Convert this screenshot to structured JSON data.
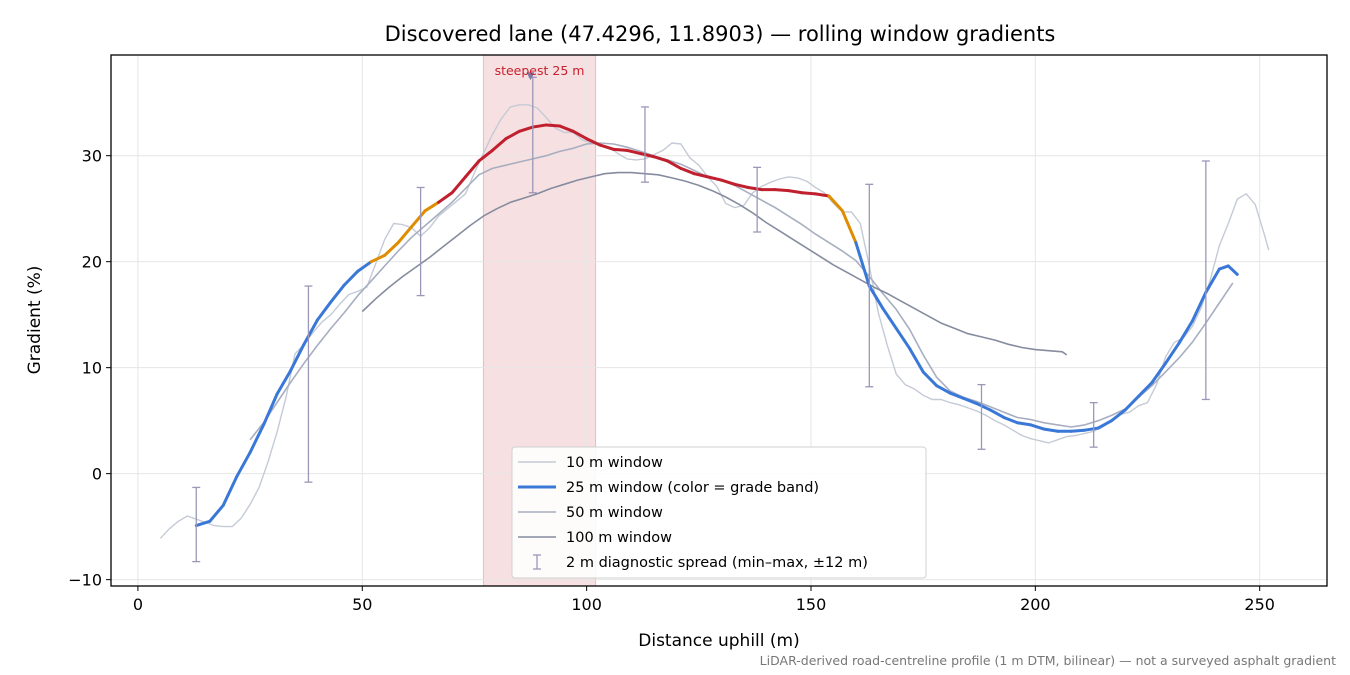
{
  "chart_data": {
    "type": "line",
    "title": "Discovered lane (47.4296, 11.8903) — rolling window gradients",
    "xlabel": "Distance uphill (m)",
    "ylabel": "Gradient (%)",
    "xlim": [
      -6,
      265
    ],
    "ylim": [
      -10.6,
      39.5
    ],
    "x_ticks": [
      0,
      50,
      100,
      150,
      200,
      250
    ],
    "y_ticks": [
      -10,
      0,
      10,
      20,
      30
    ],
    "x_tick_labels": [
      "0",
      "50",
      "100",
      "150",
      "200",
      "250"
    ],
    "y_tick_labels": [
      "−10",
      "0",
      "10",
      "20",
      "30"
    ],
    "grid": true,
    "legend_placement": "lower-center",
    "footnote": "LiDAR-derived road-centreline profile (1 m DTM, bilinear) — not a surveyed asphalt gradient",
    "highlight": {
      "x_start": 77,
      "x_end": 102,
      "label": "steepest 25 m",
      "marker_x": 87.5,
      "marker_y": 37.5,
      "color": "#c8202e"
    },
    "grade_band_colors": {
      "low": "#3a78d8",
      "mid": "#e08c00",
      "high": "#c0202e"
    },
    "grade_band_thresholds": [
      20,
      26
    ],
    "series": [
      {
        "name": "10 m window",
        "color": "#c4cad6",
        "x": [
          5,
          7,
          9,
          11,
          13,
          15,
          17,
          19,
          21,
          23,
          25,
          27,
          29,
          31,
          33,
          35,
          37,
          39,
          41,
          43,
          45,
          47,
          49,
          51,
          53,
          55,
          57,
          59,
          61,
          63,
          65,
          67,
          69,
          71,
          73,
          75,
          77,
          79,
          81,
          83,
          85,
          87,
          89,
          91,
          93,
          95,
          97,
          99,
          101,
          103,
          105,
          107,
          109,
          111,
          113,
          115,
          117,
          119,
          121,
          123,
          125,
          127,
          129,
          131,
          133,
          135,
          137,
          139,
          141,
          143,
          145,
          147,
          149,
          151,
          153,
          155,
          157,
          159,
          161,
          163,
          165,
          167,
          169,
          171,
          173,
          175,
          177,
          179,
          181,
          183,
          185,
          187,
          189,
          191,
          193,
          195,
          197,
          199,
          201,
          203,
          205,
          207,
          209,
          211,
          213,
          215,
          217,
          219,
          221,
          223,
          225,
          227,
          229,
          231,
          233,
          235,
          237,
          239,
          241,
          243,
          245,
          247,
          249,
          251,
          252
        ],
        "y": [
          -6.1,
          -5.2,
          -4.5,
          -4.0,
          -4.3,
          -4.6,
          -4.9,
          -5.0,
          -5.0,
          -4.2,
          -2.9,
          -1.3,
          1.1,
          3.9,
          7.2,
          11.3,
          12.2,
          13.3,
          14.3,
          15.0,
          16.0,
          16.9,
          17.2,
          17.6,
          19.8,
          22.1,
          23.6,
          23.5,
          23.2,
          22.4,
          23.2,
          24.3,
          25.0,
          25.7,
          26.4,
          28.4,
          30.2,
          32.0,
          33.5,
          34.6,
          34.8,
          34.8,
          34.5,
          33.6,
          32.6,
          32.2,
          32.2,
          31.5,
          31.2,
          31.0,
          30.8,
          30.2,
          29.7,
          29.6,
          29.7,
          30.1,
          30.5,
          31.2,
          31.1,
          29.8,
          29.1,
          28.0,
          27.1,
          25.5,
          25.1,
          25.3,
          26.5,
          27.1,
          27.5,
          27.8,
          28.0,
          27.9,
          27.6,
          27.0,
          26.5,
          25.5,
          24.7,
          24.7,
          23.6,
          19.6,
          15.2,
          12.1,
          9.4,
          8.4,
          8.0,
          7.4,
          7.0,
          7.0,
          6.7,
          6.5,
          6.2,
          5.9,
          5.5,
          5.0,
          4.6,
          4.1,
          3.6,
          3.3,
          3.1,
          2.9,
          3.2,
          3.5,
          3.6,
          3.8,
          4.0,
          4.4,
          5.0,
          5.6,
          5.8,
          6.4,
          6.7,
          8.4,
          11.0,
          12.4,
          12.8,
          13.9,
          15.7,
          18.3,
          21.5,
          23.6,
          25.9,
          26.4,
          25.4,
          22.6,
          21.1
        ]
      },
      {
        "name": "25 m window (color = grade band)",
        "color": "#3a78d8",
        "banded": true,
        "x": [
          13,
          16,
          19,
          22,
          25,
          28,
          31,
          34,
          37,
          40,
          43,
          46,
          49,
          52,
          55,
          58,
          61,
          64,
          67,
          70,
          73,
          76,
          79,
          82,
          85,
          88,
          91,
          94,
          97,
          100,
          103,
          106,
          109,
          112,
          115,
          118,
          121,
          124,
          127,
          130,
          133,
          136,
          139,
          142,
          145,
          148,
          151,
          154,
          157,
          160,
          163,
          166,
          169,
          172,
          175,
          178,
          181,
          184,
          187,
          190,
          193,
          196,
          199,
          202,
          205,
          208,
          211,
          214,
          217,
          220,
          223,
          226,
          229,
          232,
          235,
          238,
          241,
          243,
          245
        ],
        "y": [
          -4.9,
          -4.5,
          -3.0,
          -0.3,
          2.0,
          4.6,
          7.5,
          9.7,
          12.2,
          14.5,
          16.2,
          17.8,
          19.1,
          20.0,
          20.6,
          21.8,
          23.3,
          24.8,
          25.6,
          26.5,
          28.0,
          29.5,
          30.5,
          31.6,
          32.3,
          32.7,
          32.9,
          32.8,
          32.3,
          31.6,
          31.0,
          30.6,
          30.5,
          30.2,
          29.9,
          29.5,
          28.8,
          28.3,
          28.0,
          27.7,
          27.3,
          27.0,
          26.8,
          26.8,
          26.7,
          26.5,
          26.4,
          26.2,
          24.8,
          21.8,
          17.7,
          15.6,
          13.7,
          11.8,
          9.6,
          8.3,
          7.6,
          7.1,
          6.6,
          6.0,
          5.3,
          4.8,
          4.6,
          4.2,
          4.0,
          4.0,
          4.1,
          4.3,
          5.0,
          6.0,
          7.3,
          8.6,
          10.4,
          12.3,
          14.4,
          17.1,
          19.3,
          19.6,
          18.8
        ]
      },
      {
        "name": "50 m window",
        "color": "#a7aec0",
        "x": [
          25,
          28,
          31,
          34,
          37,
          40,
          43,
          46,
          49,
          52,
          55,
          58,
          61,
          64,
          67,
          70,
          73,
          76,
          79,
          82,
          85,
          88,
          91,
          94,
          97,
          100,
          103,
          106,
          109,
          112,
          115,
          118,
          121,
          124,
          127,
          130,
          133,
          136,
          139,
          142,
          145,
          148,
          151,
          154,
          157,
          160,
          163,
          166,
          169,
          172,
          175,
          178,
          181,
          184,
          187,
          190,
          193,
          196,
          199,
          202,
          205,
          208,
          211,
          214,
          217,
          220,
          223,
          226,
          229,
          232,
          235,
          238,
          241,
          244
        ],
        "y": [
          3.2,
          4.8,
          6.7,
          8.6,
          10.4,
          12.1,
          13.7,
          15.2,
          16.8,
          18.2,
          19.6,
          21.0,
          22.3,
          23.4,
          24.5,
          25.6,
          26.9,
          28.2,
          28.8,
          29.1,
          29.4,
          29.7,
          30.0,
          30.4,
          30.7,
          31.1,
          31.2,
          31.1,
          30.8,
          30.4,
          30.0,
          29.6,
          29.2,
          28.6,
          28.0,
          27.7,
          27.2,
          26.5,
          25.8,
          25.1,
          24.3,
          23.5,
          22.6,
          21.8,
          21.0,
          20.1,
          18.6,
          17.0,
          15.5,
          13.6,
          11.2,
          9.1,
          7.8,
          7.2,
          6.8,
          6.3,
          5.8,
          5.3,
          5.1,
          4.8,
          4.6,
          4.4,
          4.6,
          5.0,
          5.5,
          6.1,
          7.2,
          8.3,
          9.6,
          10.9,
          12.4,
          14.2,
          16.1,
          18.0
        ]
      },
      {
        "name": "100 m window",
        "color": "#868c9f",
        "x": [
          50,
          53,
          56,
          59,
          62,
          65,
          68,
          71,
          74,
          77,
          80,
          83,
          86,
          89,
          92,
          95,
          98,
          101,
          104,
          107,
          110,
          113,
          116,
          119,
          122,
          125,
          128,
          131,
          134,
          137,
          140,
          143,
          146,
          149,
          152,
          155,
          158,
          161,
          164,
          167,
          170,
          173,
          176,
          179,
          182,
          185,
          188,
          191,
          194,
          197,
          200,
          203,
          206,
          207
        ],
        "y": [
          15.3,
          16.5,
          17.6,
          18.6,
          19.5,
          20.4,
          21.4,
          22.4,
          23.4,
          24.3,
          25.0,
          25.6,
          26.0,
          26.4,
          26.9,
          27.3,
          27.7,
          28.0,
          28.3,
          28.4,
          28.4,
          28.3,
          28.2,
          27.9,
          27.6,
          27.2,
          26.7,
          26.1,
          25.4,
          24.6,
          23.7,
          22.9,
          22.1,
          21.3,
          20.5,
          19.7,
          19.0,
          18.3,
          17.6,
          17.0,
          16.3,
          15.6,
          14.9,
          14.2,
          13.7,
          13.2,
          12.9,
          12.6,
          12.2,
          11.9,
          11.7,
          11.6,
          11.5,
          11.2
        ]
      }
    ],
    "error_bars": {
      "name": "2 m diagnostic spread (min–max, ±12 m)",
      "color": "#9b97b8",
      "x": [
        13,
        38,
        63,
        88,
        113,
        138,
        163,
        188,
        213,
        238
      ],
      "center": [
        -4.9,
        13.0,
        23.4,
        32.5,
        30.0,
        26.8,
        19.8,
        5.8,
        4.3,
        16.0
      ],
      "low": [
        -8.3,
        -0.8,
        16.8,
        26.5,
        27.5,
        22.8,
        8.2,
        2.3,
        2.5,
        7.0
      ],
      "high": [
        -1.3,
        17.7,
        27.0,
        37.4,
        34.6,
        28.9,
        27.3,
        8.4,
        6.7,
        29.5
      ]
    }
  }
}
